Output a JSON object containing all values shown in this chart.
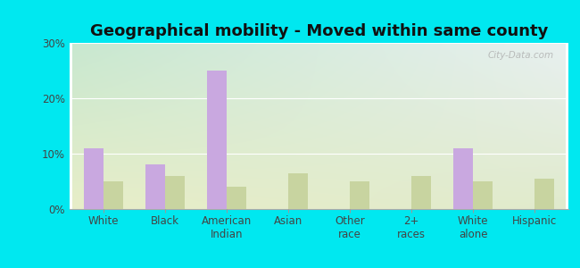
{
  "title": "Geographical mobility - Moved within same county",
  "categories": [
    "White",
    "Black",
    "American\nIndian",
    "Asian",
    "Other\nrace",
    "2+\nraces",
    "White\nalone",
    "Hispanic"
  ],
  "little_valley": [
    11.0,
    8.0,
    25.0,
    0.0,
    0.0,
    0.0,
    11.0,
    0.0
  ],
  "new_york": [
    5.0,
    6.0,
    4.0,
    6.5,
    5.0,
    6.0,
    5.0,
    5.5
  ],
  "bar_color_lv": "#c9a8e0",
  "bar_color_ny": "#c8d4a0",
  "background_outer": "#00e8f0",
  "bg_top_left": "#c8e8d0",
  "bg_top_right": "#e8f0f0",
  "bg_bottom": "#e8eec8",
  "ylim": [
    0,
    30
  ],
  "yticks": [
    0,
    10,
    20,
    30
  ],
  "ytick_labels": [
    "0%",
    "10%",
    "20%",
    "30%"
  ],
  "watermark": "City-Data.com",
  "title_fontsize": 13,
  "tick_fontsize": 8.5,
  "legend_fontsize": 9
}
